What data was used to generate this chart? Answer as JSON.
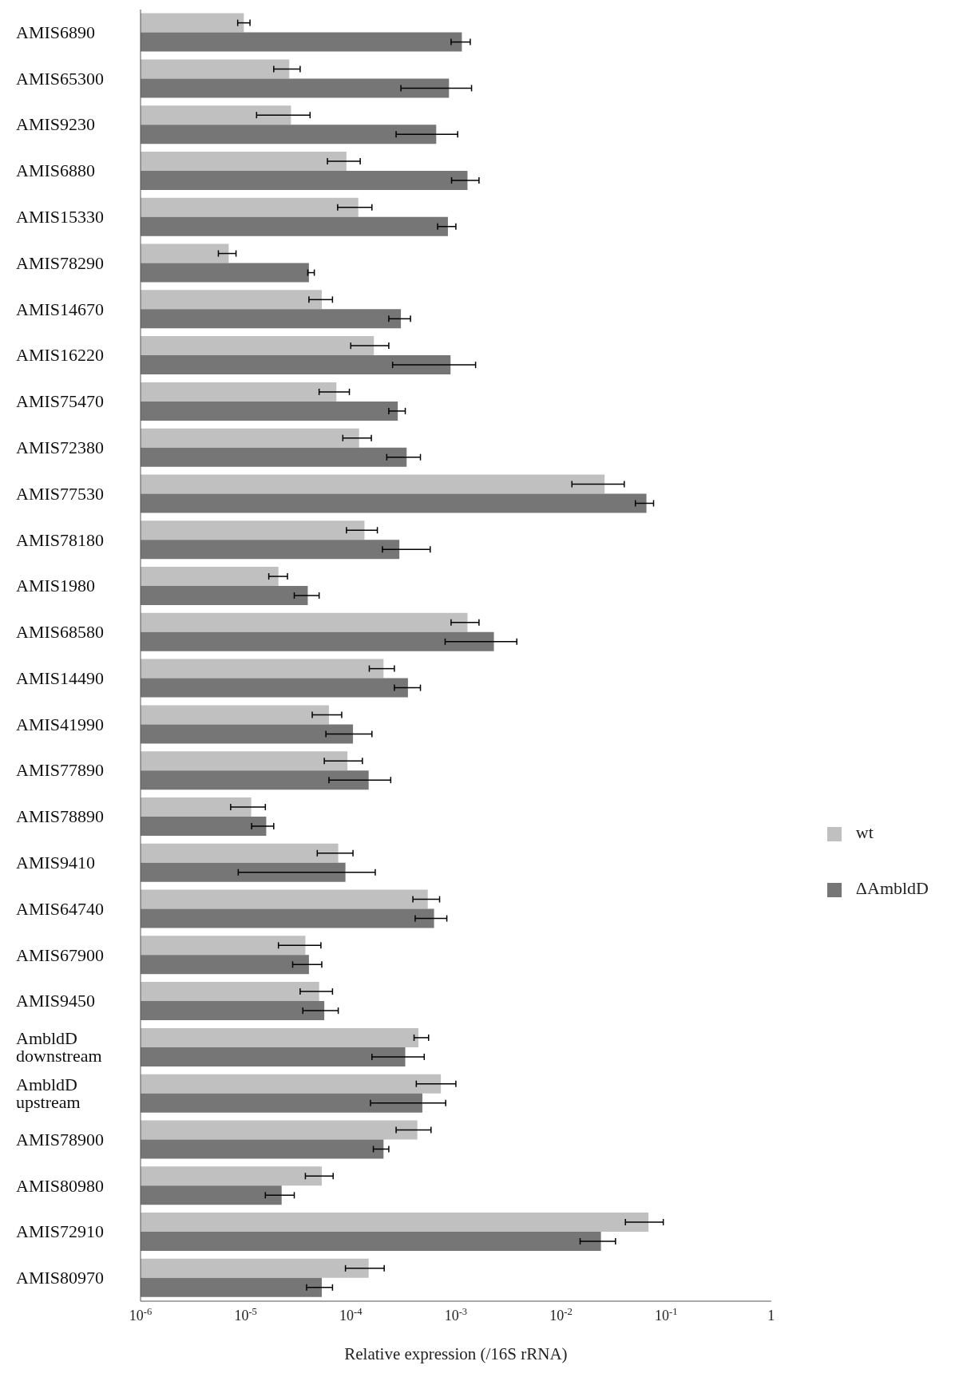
{
  "chart_data": {
    "type": "bar",
    "orientation": "horizontal",
    "log": "x",
    "xlabel": "Relative expression (/16S rRNA)",
    "legend": "right",
    "categories": [
      "AMIS6890",
      "AMIS65300",
      "AMIS9230",
      "AMIS6880",
      "AMIS15330",
      "AMIS78290",
      "AMIS14670",
      "AMIS16220",
      "AMIS75470",
      "AMIS72380",
      "AMIS77530",
      "AMIS78180",
      "AMIS1980",
      "AMIS68580",
      "AMIS14490",
      "AMIS41990",
      "AMIS77890",
      "AMIS78890",
      "AMIS9410",
      "AMIS64740",
      "AMIS67900",
      "AMIS9450",
      "AmbldD downstream",
      "AmbldD upstream",
      "AMIS78900",
      "AMIS80980",
      "AMIS72910",
      "AMIS80970"
    ],
    "xlim": [
      1e-06,
      1
    ],
    "xticks": [
      {
        "value": 1e-06,
        "label": "10$^{-6}$"
      },
      {
        "value": 1e-05,
        "label": "10$^{-5}$"
      },
      {
        "value": 0.0001,
        "label": "10$^{-4}$"
      },
      {
        "value": 0.001,
        "label": "10$^{-3}$"
      },
      {
        "value": 0.01,
        "label": "10$^{-2}$"
      },
      {
        "value": 0.1,
        "label": "10$^{-1}$"
      },
      1
    ],
    "series": [
      {
        "name": "wt",
        "color": "#c0c0c0",
        "values": [
          9.6e-06,
          2.6e-05,
          2.7e-05,
          9.1e-05,
          0.000118,
          6.9e-06,
          5.3e-05,
          0.000166,
          7.3e-05,
          0.00012,
          0.026,
          0.000135,
          2.05e-05,
          0.00129,
          0.000205,
          6.2e-05,
          9.3e-05,
          1.13e-05,
          7.6e-05,
          0.00054,
          3.7e-05,
          5e-05,
          0.00044,
          0.00072,
          0.00043,
          5.3e-05,
          0.068,
          0.000148
        ],
        "errors": [
          [
            8.4e-06,
            1.1e-05
          ],
          [
            1.85e-05,
            3.3e-05
          ],
          [
            1.27e-05,
            4.1e-05
          ],
          [
            6e-05,
            0.000123
          ],
          [
            7.5e-05,
            0.000159
          ],
          [
            5.5e-06,
            8.1e-06
          ],
          [
            4e-05,
            6.7e-05
          ],
          [
            0.0001,
            0.00023
          ],
          [
            5e-05,
            9.7e-05
          ],
          [
            8.4e-05,
            0.000157
          ],
          [
            0.0127,
            0.04
          ],
          [
            9.1e-05,
            0.000179
          ],
          [
            1.66e-05,
            2.5e-05
          ],
          [
            0.0009,
            0.00166
          ],
          [
            0.00015,
            0.00026
          ],
          [
            4.3e-05,
            8.2e-05
          ],
          [
            5.6e-05,
            0.000129
          ],
          [
            7.2e-06,
            1.54e-05
          ],
          [
            4.8e-05,
            0.000105
          ],
          [
            0.00039,
            0.0007
          ],
          [
            2.05e-05,
            5.2e-05
          ],
          [
            3.3e-05,
            6.7e-05
          ],
          [
            0.0004,
            0.00055
          ],
          [
            0.00042,
            0.001
          ],
          [
            0.00027,
            0.00058
          ],
          [
            3.7e-05,
            6.8e-05
          ],
          [
            0.041,
            0.094
          ],
          [
            8.9e-05,
            0.000208
          ]
        ]
      },
      {
        "name": "ΔAmbldD",
        "color": "#767676",
        "values": [
          0.00114,
          0.00086,
          0.00065,
          0.00129,
          0.00084,
          4e-05,
          0.0003,
          0.00089,
          0.00028,
          0.00034,
          0.065,
          0.00029,
          3.9e-05,
          0.0023,
          0.00035,
          0.000105,
          0.000148,
          1.57e-05,
          8.9e-05,
          0.00062,
          4e-05,
          5.6e-05,
          0.00033,
          0.00048,
          0.000205,
          2.2e-05,
          0.024,
          5.3e-05
        ],
        "errors": [
          [
            0.0009,
            0.00137
          ],
          [
            0.0003,
            0.00141
          ],
          [
            0.00027,
            0.00104
          ],
          [
            0.00091,
            0.00166
          ],
          [
            0.00067,
            0.001
          ],
          [
            3.9e-05,
            4.5e-05
          ],
          [
            0.00023,
            0.00037
          ],
          [
            0.00025,
            0.00154
          ],
          [
            0.00023,
            0.00033
          ],
          [
            0.00022,
            0.00046
          ],
          [
            0.051,
            0.076
          ],
          [
            0.0002,
            0.00057
          ],
          [
            2.9e-05,
            5e-05
          ],
          [
            0.00079,
            0.0038
          ],
          [
            0.00026,
            0.00046
          ],
          [
            5.8e-05,
            0.000159
          ],
          [
            6.2e-05,
            0.00024
          ],
          [
            1.14e-05,
            1.85e-05
          ],
          [
            8.5e-06,
            0.000171
          ],
          [
            0.00041,
            0.00082
          ],
          [
            2.8e-05,
            5.3e-05
          ],
          [
            3.5e-05,
            7.6e-05
          ],
          [
            0.000159,
            0.0005
          ],
          [
            0.000154,
            0.0008
          ],
          [
            0.000164,
            0.00023
          ],
          [
            1.54e-05,
            2.9e-05
          ],
          [
            0.0152,
            0.033
          ],
          [
            3.8e-05,
            6.7e-05
          ]
        ]
      }
    ]
  }
}
